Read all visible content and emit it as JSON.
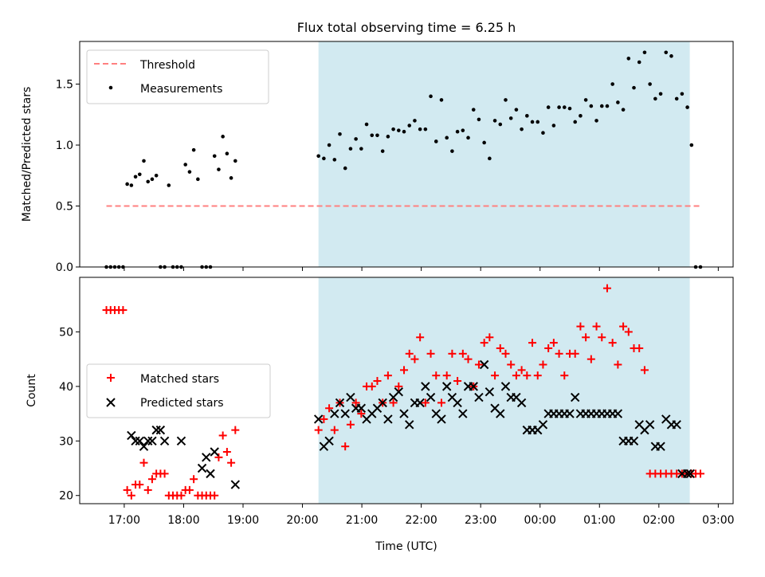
{
  "figure_title": "Flux total observing time = 6.25 h",
  "colors": {
    "span": "#add8e6",
    "threshold": "#ff8080",
    "matched": "#ff0000",
    "predicted": "#000000",
    "measurement": "#000000"
  },
  "chart_data": [
    {
      "type": "scatter",
      "ylabel": "Matched/Predicted stars",
      "xlim": [
        16.25,
        27.25
      ],
      "ylim": [
        0,
        1.85
      ],
      "yticks": [
        "0.0",
        "0.5",
        "1.0",
        "1.5"
      ],
      "ytick_values": [
        0,
        0.5,
        1.0,
        1.5
      ],
      "shaded_span": [
        20.27,
        26.52
      ],
      "legend": {
        "position": "top-left",
        "entries": [
          "Threshold",
          "Measurements"
        ]
      },
      "threshold": {
        "name": "Threshold",
        "y": 0.5,
        "x": [
          16.7,
          26.7
        ]
      },
      "series": [
        {
          "name": "Measurements",
          "x": [
            16.7,
            16.77,
            16.84,
            16.91,
            16.98,
            17.05,
            17.12,
            17.19,
            17.26,
            17.33,
            17.4,
            17.47,
            17.54,
            17.61,
            17.68,
            17.75,
            17.82,
            17.89,
            17.96,
            18.03,
            18.1,
            18.17,
            18.24,
            18.31,
            18.38,
            18.45,
            18.52,
            18.59,
            18.66,
            18.73,
            18.8,
            18.87,
            20.27,
            20.36,
            20.45,
            20.54,
            20.63,
            20.72,
            20.81,
            20.9,
            20.99,
            21.08,
            21.17,
            21.26,
            21.35,
            21.44,
            21.53,
            21.62,
            21.71,
            21.8,
            21.89,
            21.98,
            22.07,
            22.16,
            22.25,
            22.34,
            22.43,
            22.52,
            22.61,
            22.7,
            22.79,
            22.88,
            22.97,
            23.06,
            23.15,
            23.24,
            23.33,
            23.42,
            23.51,
            23.6,
            23.69,
            23.78,
            23.87,
            23.96,
            24.05,
            24.14,
            24.23,
            24.32,
            24.41,
            24.5,
            24.59,
            24.68,
            24.77,
            24.86,
            24.95,
            25.04,
            25.13,
            25.22,
            25.31,
            25.4,
            25.49,
            25.58,
            25.67,
            25.76,
            25.85,
            25.94,
            26.03,
            26.12,
            26.21,
            26.3,
            26.39,
            26.48,
            26.55,
            26.62,
            26.7
          ],
          "y": [
            0,
            0,
            0,
            0,
            0,
            0.68,
            0.67,
            0.74,
            0.76,
            0.87,
            0.7,
            0.72,
            0.75,
            0,
            0,
            0.67,
            0,
            0,
            0,
            0.84,
            0.78,
            0.96,
            0.72,
            0,
            0,
            0,
            0.91,
            0.8,
            1.07,
            0.93,
            0.73,
            0.87,
            0.91,
            0.89,
            1.0,
            0.88,
            1.09,
            0.81,
            0.97,
            1.05,
            0.97,
            1.17,
            1.08,
            1.08,
            0.95,
            1.07,
            1.13,
            1.12,
            1.11,
            1.16,
            1.2,
            1.13,
            1.13,
            1.4,
            1.03,
            1.37,
            1.06,
            0.95,
            1.11,
            1.12,
            1.06,
            1.29,
            1.21,
            1.02,
            0.89,
            1.2,
            1.17,
            1.37,
            1.22,
            1.29,
            1.13,
            1.24,
            1.19,
            1.19,
            1.1,
            1.31,
            1.16,
            1.31,
            1.31,
            1.3,
            1.19,
            1.24,
            1.37,
            1.32,
            1.2,
            1.32,
            1.32,
            1.5,
            1.35,
            1.29,
            1.71,
            1.47,
            1.68,
            1.76,
            1.5,
            1.38,
            1.42,
            1.76,
            1.73,
            1.38,
            1.42,
            1.31,
            1.0,
            0,
            0
          ],
          "y_zero_positions_note": ""
        }
      ]
    },
    {
      "type": "scatter",
      "xlabel": "Time (UTC)",
      "ylabel": "Count",
      "xlim": [
        16.25,
        27.25
      ],
      "ylim": [
        18.5,
        60
      ],
      "yticks": [
        "20",
        "30",
        "40",
        "50"
      ],
      "ytick_values": [
        20,
        30,
        40,
        50
      ],
      "xticks": [
        "17:00",
        "18:00",
        "19:00",
        "20:00",
        "21:00",
        "22:00",
        "23:00",
        "00:00",
        "01:00",
        "02:00",
        "03:00"
      ],
      "xtick_values": [
        17,
        18,
        19,
        20,
        21,
        22,
        23,
        24,
        25,
        26,
        27
      ],
      "shaded_span": [
        20.27,
        26.52
      ],
      "legend": {
        "position": "center-left",
        "entries": [
          "Matched stars",
          "Predicted stars"
        ]
      },
      "series": [
        {
          "name": "Matched stars",
          "marker": "+",
          "x": [
            16.7,
            16.77,
            16.84,
            16.91,
            16.98,
            17.05,
            17.12,
            17.19,
            17.26,
            17.33,
            17.4,
            17.47,
            17.54,
            17.61,
            17.68,
            17.75,
            17.82,
            17.89,
            17.96,
            18.03,
            18.1,
            18.17,
            18.24,
            18.31,
            18.38,
            18.45,
            18.52,
            18.59,
            18.66,
            18.73,
            18.8,
            18.87,
            20.27,
            20.36,
            20.45,
            20.54,
            20.63,
            20.72,
            20.81,
            20.9,
            20.99,
            21.08,
            21.17,
            21.26,
            21.35,
            21.44,
            21.53,
            21.62,
            21.71,
            21.8,
            21.89,
            21.98,
            22.07,
            22.16,
            22.25,
            22.34,
            22.43,
            22.52,
            22.61,
            22.7,
            22.79,
            22.88,
            22.97,
            23.06,
            23.15,
            23.24,
            23.33,
            23.42,
            23.51,
            23.6,
            23.69,
            23.78,
            23.87,
            23.96,
            24.05,
            24.14,
            24.23,
            24.32,
            24.41,
            24.5,
            24.59,
            24.68,
            24.77,
            24.86,
            24.95,
            25.04,
            25.13,
            25.22,
            25.31,
            25.4,
            25.49,
            25.58,
            25.67,
            25.76,
            25.85,
            25.94,
            26.03,
            26.12,
            26.21,
            26.3,
            26.39,
            26.48,
            26.55,
            26.62,
            26.7
          ],
          "y": [
            54,
            54,
            54,
            54,
            54,
            21,
            20,
            22,
            22,
            26,
            21,
            23,
            24,
            24,
            24,
            20,
            20,
            20,
            20,
            21,
            21,
            23,
            20,
            20,
            20,
            20,
            20,
            27,
            31,
            28,
            26,
            32,
            32,
            34,
            36,
            32,
            37,
            29,
            33,
            37,
            35,
            40,
            40,
            41,
            37,
            42,
            37,
            40,
            43,
            46,
            45,
            49,
            37,
            46,
            42,
            37,
            42,
            46,
            41,
            46,
            45,
            40,
            44,
            48,
            49,
            42,
            47,
            46,
            44,
            42,
            43,
            42,
            48,
            42,
            44,
            47,
            48,
            46,
            42,
            46,
            46,
            51,
            49,
            45,
            51,
            49,
            58,
            48,
            44,
            51,
            50,
            47,
            47,
            43,
            24,
            24,
            24,
            24,
            24,
            24,
            24,
            24,
            24,
            24,
            24
          ],
          "y_trim": 94
        },
        {
          "name": "Predicted stars",
          "marker": "x",
          "x": [
            17.12,
            17.19,
            17.26,
            17.33,
            17.4,
            17.47,
            17.54,
            17.61,
            17.68,
            17.96,
            18.31,
            18.38,
            18.45,
            18.52,
            18.87,
            20.27,
            20.36,
            20.45,
            20.54,
            20.63,
            20.72,
            20.81,
            20.9,
            20.99,
            21.08,
            21.17,
            21.26,
            21.35,
            21.44,
            21.53,
            21.62,
            21.71,
            21.8,
            21.89,
            21.98,
            22.07,
            22.16,
            22.25,
            22.34,
            22.43,
            22.52,
            22.61,
            22.7,
            22.79,
            22.88,
            22.97,
            23.06,
            23.15,
            23.24,
            23.33,
            23.42,
            23.51,
            23.6,
            23.69,
            23.78,
            23.87,
            23.96,
            24.05,
            24.14,
            24.23,
            24.32,
            24.41,
            24.5,
            24.59,
            24.68,
            24.77,
            24.86,
            24.95,
            25.04,
            25.13,
            25.22,
            25.31,
            25.4,
            25.49,
            25.58,
            25.67,
            25.76,
            25.85,
            25.94,
            26.03,
            26.12,
            26.21,
            26.3,
            26.39,
            26.48,
            26.53
          ],
          "y": [
            31,
            30,
            30,
            29,
            30,
            30,
            32,
            32,
            30,
            30,
            25,
            27,
            24,
            28,
            22,
            34,
            29,
            30,
            35,
            37,
            35,
            38,
            36,
            36,
            34,
            35,
            36,
            37,
            34,
            38,
            39,
            35,
            33,
            37,
            37,
            40,
            38,
            35,
            34,
            40,
            38,
            37,
            35,
            40,
            40,
            38,
            44,
            39,
            36,
            35,
            40,
            38,
            38,
            37,
            32,
            32,
            32,
            33,
            35,
            35,
            35,
            35,
            35,
            38,
            35,
            35,
            35,
            35,
            35,
            35,
            35,
            35,
            30,
            30,
            30,
            33,
            32,
            33,
            29,
            29,
            34,
            33,
            33,
            24,
            24,
            24
          ],
          "y_trim": 86
        }
      ]
    }
  ]
}
